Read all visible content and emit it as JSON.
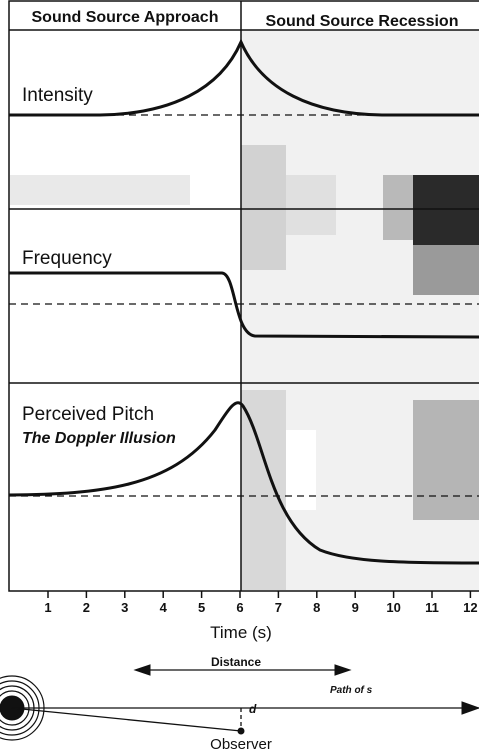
{
  "header": {
    "left": "Sound Source Approach",
    "right": "Sound Source Recession"
  },
  "panels": [
    {
      "label": "Intensity"
    },
    {
      "label": "Frequency"
    },
    {
      "label": "Perceived Pitch",
      "sublabel": "The Doppler Illusion"
    }
  ],
  "time_axis": {
    "title": "Time (s)",
    "ticks": [
      1,
      2,
      3,
      4,
      5,
      6,
      7,
      8,
      9,
      10,
      11,
      12
    ]
  },
  "geometry": {
    "distance": "Distance",
    "path": "Path of s",
    "d": "d",
    "observer": "Observer"
  }
}
